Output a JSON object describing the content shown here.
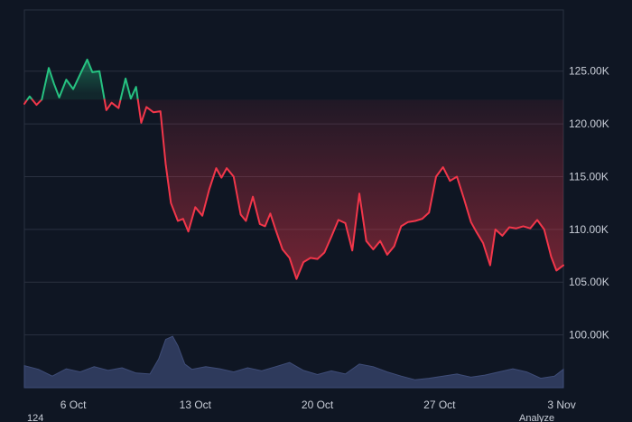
{
  "colors": {
    "background": "#0f1623",
    "grid": "#2a3140",
    "baseline": "#3b4352",
    "up_line": "#26c281",
    "down_line": "#f2364a",
    "volume_fill": "#2e3a5c",
    "volume_stroke": "#3f4d78"
  },
  "bottom": {
    "left_text": "124",
    "right_text": "Analyze"
  },
  "chart_data": {
    "type": "area",
    "style": "baseline",
    "baseline_value": 122300,
    "x_ticks": [
      "6 Oct",
      "13 Oct",
      "20 Oct",
      "27 Oct",
      "3 Nov"
    ],
    "y_ticks": [
      "125.00K",
      "120.00K",
      "115.00K",
      "110.00K",
      "105.00K",
      "100.00K"
    ],
    "y_tick_values": [
      125000,
      120000,
      115000,
      110000,
      105000,
      100000
    ],
    "ylim": [
      95000,
      130800
    ],
    "xlim_days": [
      3.2,
      34.1
    ],
    "y_axis_position": "right",
    "grid": true,
    "price": {
      "x_days": [
        3.2,
        3.5,
        3.9,
        4.2,
        4.6,
        4.9,
        5.2,
        5.6,
        6.0,
        6.4,
        6.8,
        7.1,
        7.5,
        7.9,
        8.2,
        8.6,
        9.0,
        9.3,
        9.6,
        9.9,
        10.2,
        10.6,
        11.0,
        11.3,
        11.6,
        12.0,
        12.3,
        12.6,
        13.0,
        13.4,
        13.8,
        14.2,
        14.5,
        14.8,
        15.2,
        15.6,
        15.9,
        16.3,
        16.7,
        17.0,
        17.3,
        17.6,
        18.0,
        18.4,
        18.8,
        19.2,
        19.6,
        20.0,
        20.4,
        20.8,
        21.2,
        21.6,
        22.0,
        22.4,
        22.8,
        23.2,
        23.6,
        24.0,
        24.4,
        24.8,
        25.2,
        25.6,
        26.0,
        26.4,
        26.8,
        27.2,
        27.6,
        28.0,
        28.4,
        28.8,
        29.1,
        29.5,
        29.9,
        30.2,
        30.6,
        31.0,
        31.4,
        31.8,
        32.2,
        32.6,
        33.0,
        33.4,
        33.7,
        34.1
      ],
      "y": [
        121900,
        122600,
        121800,
        122300,
        125300,
        123800,
        122500,
        124200,
        123300,
        124700,
        126100,
        124900,
        125000,
        121300,
        122000,
        121500,
        124300,
        122400,
        123500,
        120100,
        121600,
        121100,
        121200,
        116200,
        112500,
        110800,
        111000,
        109800,
        112100,
        111300,
        113800,
        115800,
        114900,
        115800,
        115000,
        111400,
        110800,
        113100,
        110500,
        110300,
        111500,
        110000,
        108100,
        107300,
        105300,
        106900,
        107300,
        107200,
        107800,
        109300,
        110900,
        110600,
        108000,
        113400,
        108900,
        108100,
        108900,
        107600,
        108400,
        110300,
        110700,
        110800,
        111000,
        111600,
        115000,
        115900,
        114600,
        115000,
        112900,
        110700,
        109800,
        108700,
        106600,
        110000,
        109400,
        110200,
        110100,
        110300,
        110100,
        110900,
        110000,
        107400,
        106100,
        106600
      ]
    },
    "volume": {
      "x_days": [
        3.2,
        4.0,
        4.8,
        5.6,
        6.4,
        7.2,
        8.0,
        8.8,
        9.6,
        10.4,
        10.9,
        11.3,
        11.7,
        12.0,
        12.4,
        12.8,
        13.6,
        14.4,
        15.2,
        16.0,
        16.8,
        17.6,
        18.4,
        19.2,
        20.0,
        20.8,
        21.6,
        22.4,
        23.2,
        24.0,
        24.8,
        25.6,
        26.4,
        27.2,
        28.0,
        28.8,
        29.6,
        30.4,
        31.2,
        32.0,
        32.8,
        33.6,
        34.1
      ],
      "y": [
        0.42,
        0.35,
        0.22,
        0.36,
        0.3,
        0.4,
        0.33,
        0.38,
        0.28,
        0.26,
        0.55,
        0.92,
        0.98,
        0.8,
        0.45,
        0.35,
        0.4,
        0.36,
        0.3,
        0.38,
        0.32,
        0.4,
        0.48,
        0.33,
        0.25,
        0.32,
        0.26,
        0.45,
        0.4,
        0.3,
        0.22,
        0.15,
        0.18,
        0.22,
        0.26,
        0.2,
        0.24,
        0.3,
        0.36,
        0.3,
        0.18,
        0.22,
        0.35
      ]
    }
  }
}
